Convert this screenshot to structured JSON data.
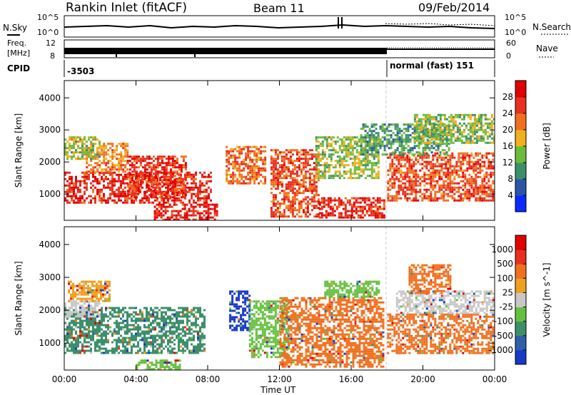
{
  "header": {
    "station": "Rankin Inlet (fitACF)",
    "beam": "Beam 11",
    "date": "09/Feb/2014"
  },
  "status_panels": {
    "nsky_label": "N.Sky",
    "nsearch_label": "N.Search",
    "freq_label_top": "Freq.",
    "freq_label_unit": "[MHz]",
    "nave_label": "Nave",
    "cpid_label": "CPID",
    "nsky_ticks": [
      "10^5",
      "10^0"
    ],
    "nsearch_ticks": [
      "10^5",
      "10^0"
    ],
    "freq_ticks": [
      "8",
      "12"
    ],
    "nave_ticks": [
      "60",
      "0"
    ],
    "cpid_left": "-3503",
    "cpid_right": "normal (fast) 151"
  },
  "chart_data": [
    {
      "type": "heatmap",
      "name": "power",
      "ylabel": "Slant Range [km]",
      "xlabel": "",
      "x_ticks": [
        "00:00",
        "04:00",
        "08:00",
        "12:00",
        "16:00",
        "20:00",
        "00:00"
      ],
      "xlim_hours": [
        0,
        24
      ],
      "y_ticks": [
        "1000",
        "2000",
        "3000",
        "4000"
      ],
      "ylim_km": [
        180,
        4540
      ],
      "colorbar": {
        "label": "Power [dB]",
        "ticks": [
          "4",
          "8",
          "12",
          "16",
          "20",
          "24",
          "28"
        ],
        "range": [
          0,
          30
        ],
        "colors": [
          "#0a2aff",
          "#2c54a8",
          "#3d8f6b",
          "#6dbb3c",
          "#f0b020",
          "#f07020",
          "#e83020",
          "#e00000"
        ]
      },
      "regions": [
        {
          "t0": 0.0,
          "t1": 8.2,
          "r0": 700,
          "r1": 1700,
          "v": 27
        },
        {
          "t0": 1.2,
          "t1": 3.5,
          "r0": 1700,
          "r1": 2600,
          "v": 20
        },
        {
          "t0": 3.5,
          "t1": 6.8,
          "r0": 900,
          "r1": 2200,
          "v": 26
        },
        {
          "t0": 0.0,
          "t1": 2.0,
          "r0": 2100,
          "r1": 2800,
          "v": 15
        },
        {
          "t0": 5.0,
          "t1": 8.5,
          "r0": 200,
          "r1": 700,
          "v": 28
        },
        {
          "t0": 9.0,
          "t1": 11.2,
          "r0": 1300,
          "r1": 2500,
          "v": 22
        },
        {
          "t0": 11.5,
          "t1": 14.2,
          "r0": 300,
          "r1": 2400,
          "v": 24
        },
        {
          "t0": 14.0,
          "t1": 17.5,
          "r0": 1500,
          "r1": 2800,
          "v": 14
        },
        {
          "t0": 14.2,
          "t1": 17.8,
          "r0": 250,
          "r1": 900,
          "v": 27
        },
        {
          "t0": 18.0,
          "t1": 24.0,
          "r0": 800,
          "r1": 2300,
          "v": 24
        },
        {
          "t0": 16.5,
          "t1": 21.5,
          "r0": 2200,
          "r1": 3200,
          "v": 10
        },
        {
          "t0": 19.5,
          "t1": 24.0,
          "r0": 2600,
          "r1": 3500,
          "v": 13
        }
      ]
    },
    {
      "type": "heatmap",
      "name": "velocity",
      "ylabel": "Slant Range [km]",
      "xlabel": "Time UT",
      "x_ticks": [
        "00:00",
        "04:00",
        "08:00",
        "12:00",
        "16:00",
        "20:00",
        "00:00"
      ],
      "xlim_hours": [
        0,
        24
      ],
      "y_ticks": [
        "1000",
        "2000",
        "3000",
        "4000"
      ],
      "ylim_km": [
        180,
        4540
      ],
      "colorbar": {
        "label": "Velocity [m s^-1]",
        "ticks": [
          "1000",
          "500",
          "100",
          "25",
          "-25",
          "-100",
          "-500",
          "-1000"
        ],
        "colors": [
          "#1838c8",
          "#2f5faa",
          "#3d8f6b",
          "#66c040",
          "#c8c8c8",
          "#f0a020",
          "#f07020",
          "#e83020",
          "#e00000"
        ]
      },
      "regions": [
        {
          "t0": 0.0,
          "t1": 7.8,
          "r0": 700,
          "r1": 2100,
          "v": "#3d8f6b"
        },
        {
          "t0": 0.0,
          "t1": 2.0,
          "r0": 1800,
          "r1": 2300,
          "v": "#c8c8c8"
        },
        {
          "t0": 0.2,
          "t1": 2.5,
          "r0": 2300,
          "r1": 2900,
          "v": "#f0a020"
        },
        {
          "t0": 4.0,
          "t1": 6.5,
          "r0": 200,
          "r1": 500,
          "v": "#66c040"
        },
        {
          "t0": 9.2,
          "t1": 10.3,
          "r0": 1400,
          "r1": 2600,
          "v": "#1838c8"
        },
        {
          "t0": 10.3,
          "t1": 12.5,
          "r0": 600,
          "r1": 2300,
          "v": "#66c040"
        },
        {
          "t0": 12.0,
          "t1": 17.8,
          "r0": 300,
          "r1": 2400,
          "v": "#f07020"
        },
        {
          "t0": 14.5,
          "t1": 17.5,
          "r0": 2400,
          "r1": 2900,
          "v": "#66c040"
        },
        {
          "t0": 18.0,
          "t1": 24.0,
          "r0": 700,
          "r1": 1900,
          "v": "#f07020"
        },
        {
          "t0": 18.5,
          "t1": 24.0,
          "r0": 1900,
          "r1": 2600,
          "v": "#c8c8c8"
        },
        {
          "t0": 19.2,
          "t1": 21.5,
          "r0": 2500,
          "r1": 3400,
          "v": "#f07020"
        }
      ]
    }
  ]
}
